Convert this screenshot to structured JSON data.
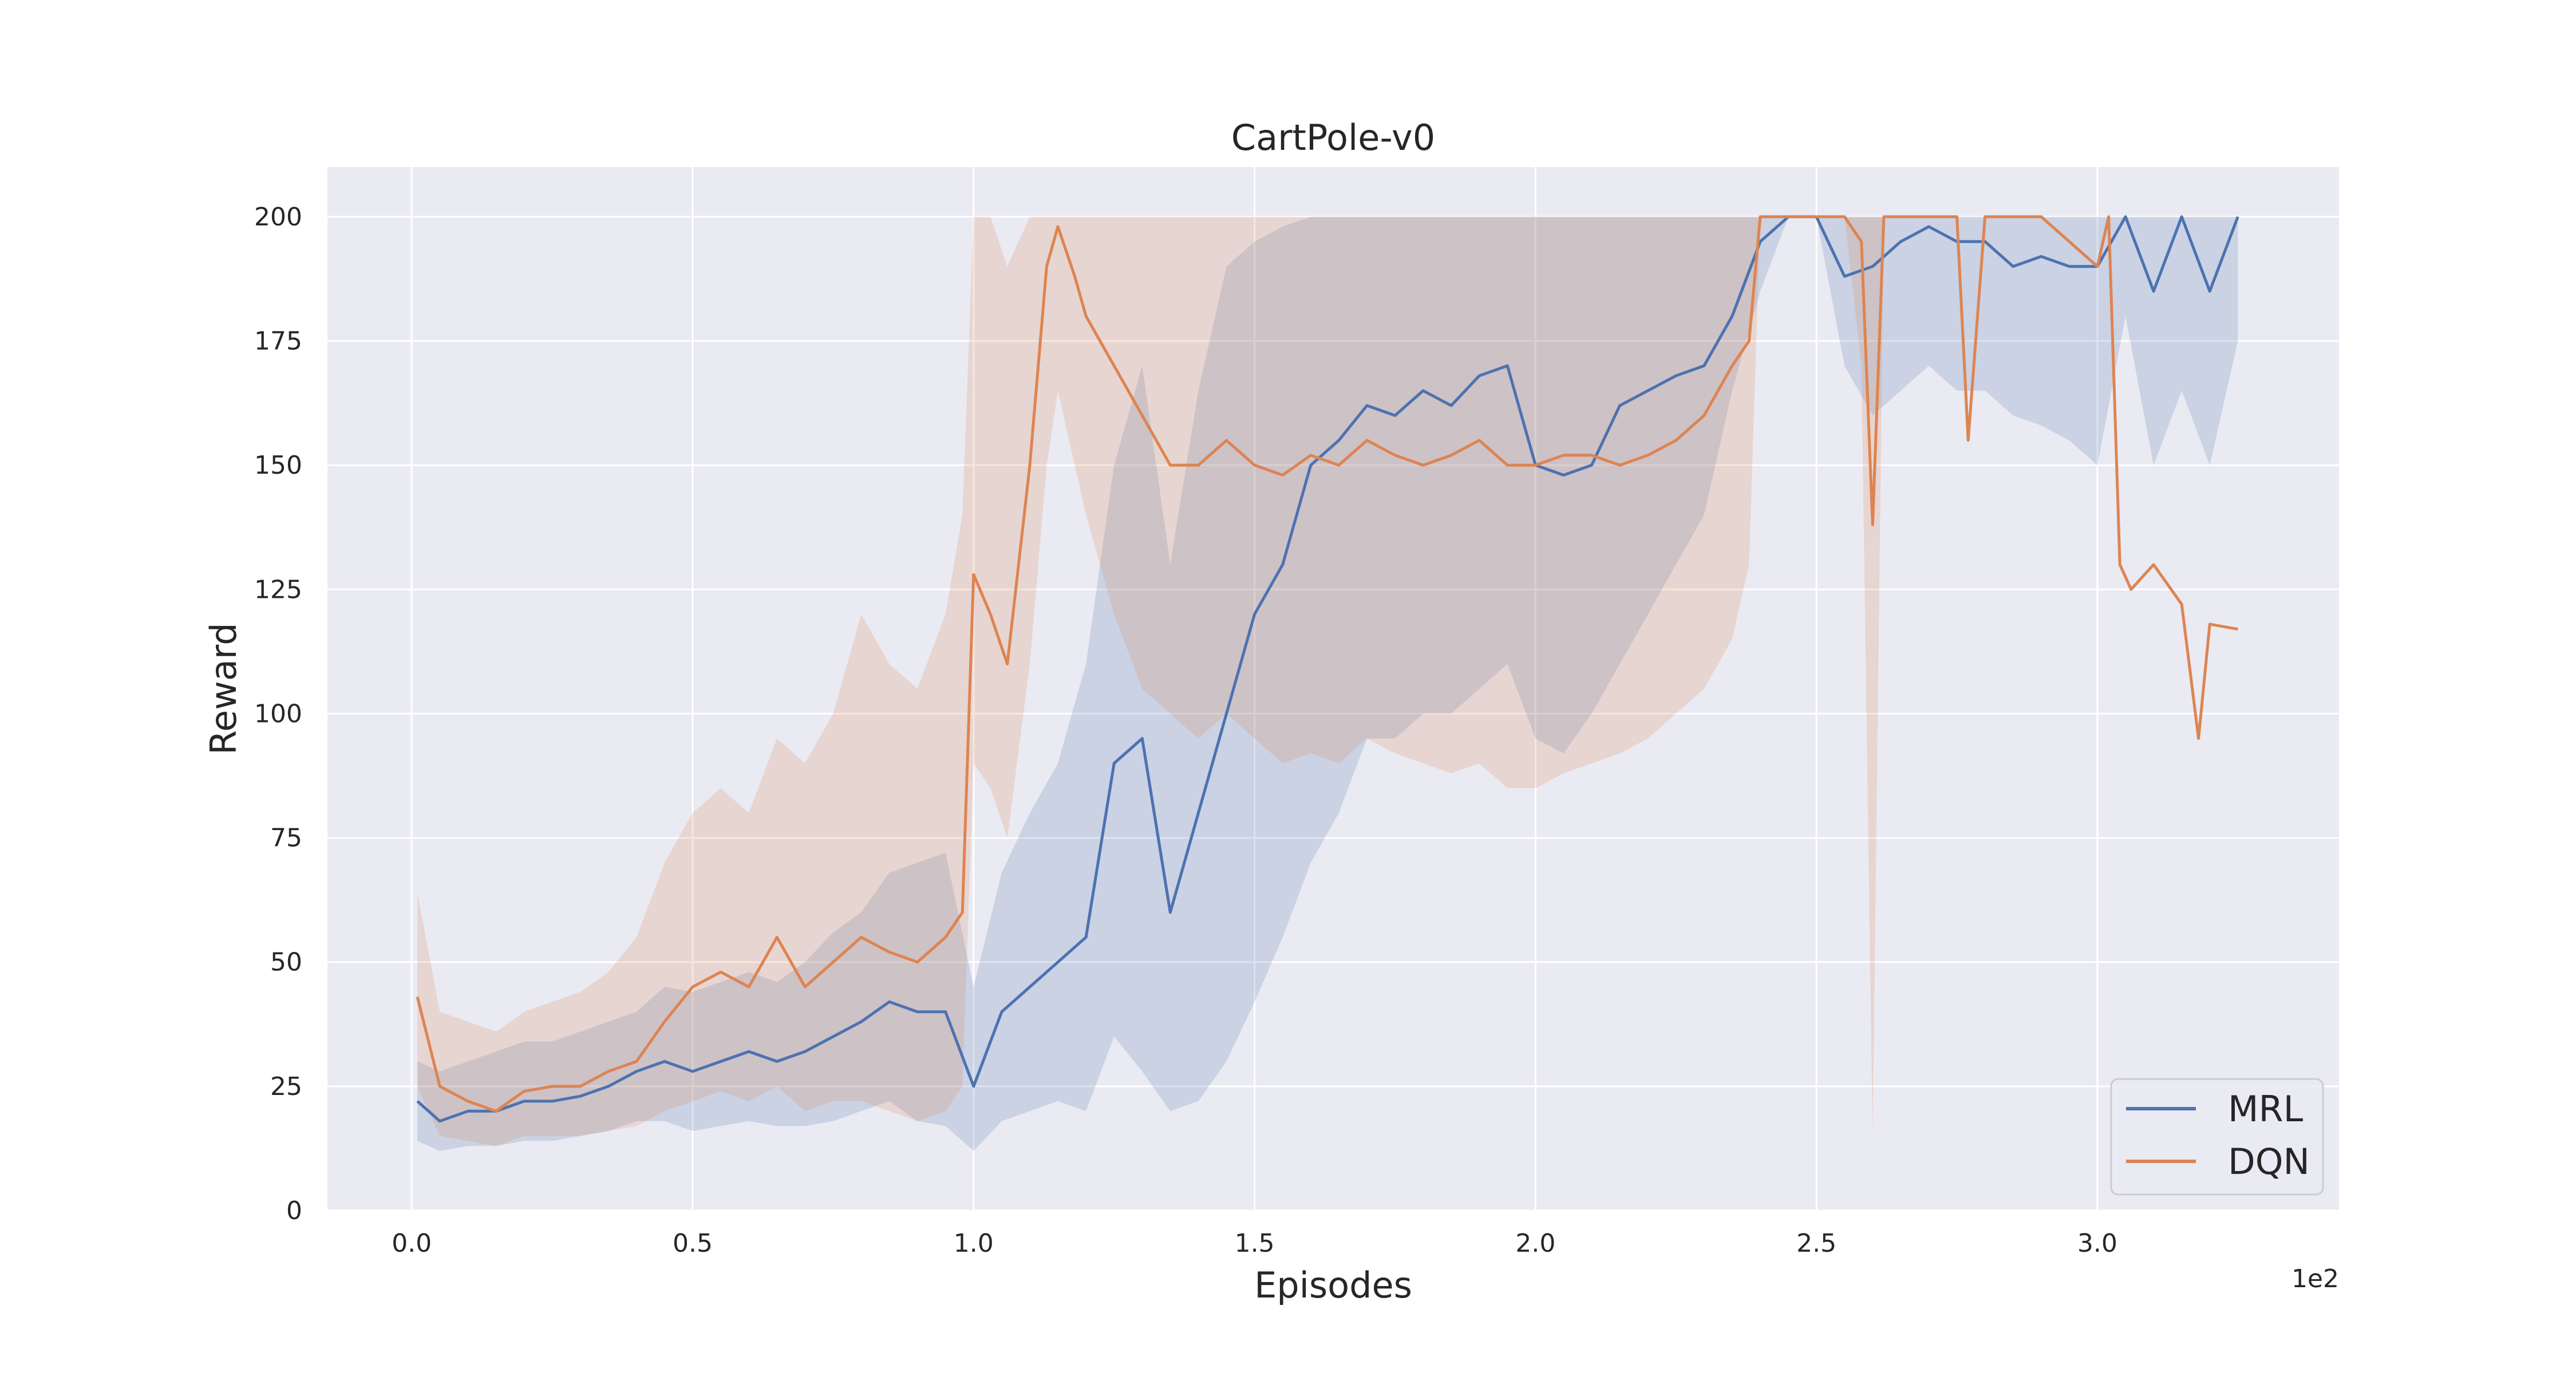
{
  "chart_data": {
    "type": "line",
    "title": "CartPole-v0",
    "xlabel": "Episodes",
    "ylabel": "Reward",
    "x_offset_label": "1e2",
    "xlim": [
      -0.15,
      3.43
    ],
    "ylim": [
      0,
      210
    ],
    "xticks": [
      0.0,
      0.5,
      1.0,
      1.5,
      2.0,
      2.5,
      3.0
    ],
    "xtick_labels": [
      "0.0",
      "0.5",
      "1.0",
      "1.5",
      "2.0",
      "2.5",
      "3.0"
    ],
    "yticks": [
      0,
      25,
      50,
      75,
      100,
      125,
      150,
      175,
      200
    ],
    "ytick_labels": [
      "0",
      "25",
      "50",
      "75",
      "100",
      "125",
      "150",
      "175",
      "200"
    ],
    "grid": true,
    "legend_position": "bottom-right",
    "colors": {
      "plot_bg": "#eaeaf2",
      "grid": "#ffffff",
      "MRL": "#4c72b0",
      "DQN": "#dd8452"
    },
    "series": [
      {
        "name": "MRL",
        "color": "#4c72b0",
        "x": [
          0.01,
          0.05,
          0.1,
          0.15,
          0.2,
          0.25,
          0.3,
          0.35,
          0.4,
          0.45,
          0.5,
          0.55,
          0.6,
          0.65,
          0.7,
          0.75,
          0.8,
          0.85,
          0.9,
          0.95,
          1.0,
          1.05,
          1.1,
          1.15,
          1.2,
          1.25,
          1.3,
          1.35,
          1.4,
          1.45,
          1.5,
          1.55,
          1.6,
          1.65,
          1.7,
          1.75,
          1.8,
          1.85,
          1.9,
          1.95,
          2.0,
          2.05,
          2.1,
          2.15,
          2.2,
          2.25,
          2.3,
          2.35,
          2.4,
          2.45,
          2.5,
          2.55,
          2.6,
          2.65,
          2.7,
          2.75,
          2.8,
          2.85,
          2.9,
          2.95,
          3.0,
          3.05,
          3.1,
          3.15,
          3.2,
          3.25
        ],
        "values": [
          22,
          18,
          20,
          20,
          22,
          22,
          23,
          25,
          28,
          30,
          28,
          30,
          32,
          30,
          32,
          35,
          38,
          42,
          40,
          40,
          25,
          40,
          45,
          50,
          55,
          90,
          95,
          60,
          80,
          100,
          120,
          130,
          150,
          155,
          162,
          160,
          165,
          162,
          168,
          170,
          150,
          148,
          150,
          162,
          165,
          168,
          170,
          180,
          195,
          200,
          200,
          188,
          190,
          195,
          198,
          195,
          195,
          190,
          192,
          190,
          190,
          200,
          185,
          200,
          185,
          200
        ],
        "lower": [
          14,
          12,
          13,
          13,
          14,
          14,
          15,
          16,
          18,
          18,
          16,
          17,
          18,
          17,
          17,
          18,
          20,
          22,
          18,
          17,
          12,
          18,
          20,
          22,
          20,
          35,
          28,
          20,
          22,
          30,
          42,
          55,
          70,
          80,
          95,
          95,
          100,
          100,
          105,
          110,
          95,
          92,
          100,
          110,
          120,
          130,
          140,
          165,
          185,
          200,
          200,
          170,
          160,
          165,
          170,
          165,
          165,
          160,
          158,
          155,
          150,
          180,
          150,
          165,
          150,
          175
        ],
        "upper": [
          30,
          28,
          30,
          32,
          34,
          34,
          36,
          38,
          40,
          45,
          44,
          46,
          48,
          46,
          50,
          56,
          60,
          68,
          70,
          72,
          45,
          68,
          80,
          90,
          110,
          150,
          170,
          130,
          165,
          190,
          195,
          198,
          200,
          200,
          200,
          200,
          200,
          200,
          200,
          200,
          200,
          200,
          200,
          200,
          200,
          200,
          200,
          200,
          200,
          200,
          200,
          200,
          200,
          200,
          200,
          200,
          200,
          200,
          200,
          200,
          200,
          200,
          200,
          200,
          200,
          200
        ]
      },
      {
        "name": "DQN",
        "color": "#dd8452",
        "x": [
          0.01,
          0.05,
          0.1,
          0.15,
          0.2,
          0.25,
          0.3,
          0.35,
          0.4,
          0.45,
          0.5,
          0.55,
          0.6,
          0.65,
          0.7,
          0.75,
          0.8,
          0.85,
          0.9,
          0.95,
          0.98,
          1.0,
          1.03,
          1.06,
          1.1,
          1.13,
          1.15,
          1.18,
          1.2,
          1.25,
          1.3,
          1.35,
          1.4,
          1.45,
          1.5,
          1.55,
          1.6,
          1.65,
          1.7,
          1.75,
          1.8,
          1.85,
          1.9,
          1.95,
          2.0,
          2.05,
          2.1,
          2.15,
          2.2,
          2.25,
          2.3,
          2.35,
          2.38,
          2.4,
          2.5,
          2.55,
          2.58,
          2.6,
          2.62,
          2.65,
          2.75,
          2.77,
          2.8,
          2.85,
          2.9,
          2.95,
          3.0,
          3.02,
          3.04,
          3.06,
          3.1,
          3.15,
          3.18,
          3.2,
          3.25
        ],
        "values": [
          43,
          25,
          22,
          20,
          24,
          25,
          25,
          28,
          30,
          38,
          45,
          48,
          45,
          55,
          45,
          50,
          55,
          52,
          50,
          55,
          60,
          128,
          120,
          110,
          150,
          190,
          198,
          188,
          180,
          170,
          160,
          150,
          150,
          155,
          150,
          148,
          152,
          150,
          155,
          152,
          150,
          152,
          155,
          150,
          150,
          152,
          152,
          150,
          152,
          155,
          160,
          170,
          175,
          200,
          200,
          200,
          195,
          138,
          200,
          200,
          200,
          155,
          200,
          200,
          200,
          195,
          190,
          200,
          130,
          125,
          130,
          122,
          95,
          118,
          117
        ],
        "lower": [
          25,
          15,
          14,
          13,
          15,
          15,
          15,
          16,
          17,
          20,
          22,
          24,
          22,
          25,
          20,
          22,
          22,
          20,
          18,
          20,
          25,
          90,
          85,
          75,
          110,
          150,
          165,
          150,
          140,
          120,
          105,
          100,
          95,
          100,
          95,
          90,
          92,
          90,
          95,
          92,
          90,
          88,
          90,
          85,
          85,
          88,
          90,
          92,
          95,
          100,
          105,
          115,
          130,
          200,
          200,
          200,
          170,
          15,
          200,
          200,
          200,
          155,
          200,
          200,
          200,
          195,
          190,
          200,
          130,
          125,
          130,
          122,
          95,
          118,
          117
        ],
        "upper": [
          64,
          40,
          38,
          36,
          40,
          42,
          44,
          48,
          55,
          70,
          80,
          85,
          80,
          95,
          90,
          100,
          120,
          110,
          105,
          120,
          140,
          200,
          200,
          190,
          200,
          200,
          200,
          200,
          200,
          200,
          200,
          200,
          200,
          200,
          200,
          200,
          200,
          200,
          200,
          200,
          200,
          200,
          200,
          200,
          200,
          200,
          200,
          200,
          200,
          200,
          200,
          200,
          200,
          200,
          200,
          200,
          200,
          200,
          200,
          200,
          200,
          155,
          200,
          200,
          200,
          195,
          190,
          200,
          130,
          125,
          130,
          122,
          95,
          118,
          117
        ]
      }
    ]
  }
}
